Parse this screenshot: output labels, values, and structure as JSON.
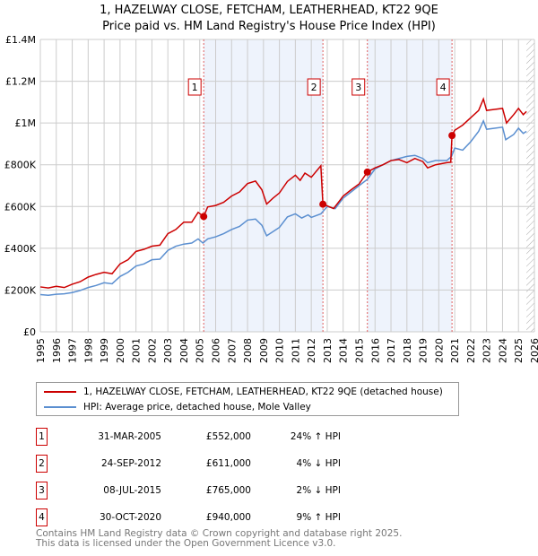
{
  "title": "1, HAZELWAY CLOSE, FETCHAM, LEATHERHEAD, KT22 9QE",
  "subtitle": "Price paid vs. HM Land Registry's House Price Index (HPI)",
  "chart_data": {
    "type": "line",
    "xlim": [
      1995,
      2026
    ],
    "ylim": [
      0,
      1400000
    ],
    "y_ticks": [
      {
        "v": 0,
        "label": "£0"
      },
      {
        "v": 200000,
        "label": "£200K"
      },
      {
        "v": 400000,
        "label": "£400K"
      },
      {
        "v": 600000,
        "label": "£600K"
      },
      {
        "v": 800000,
        "label": "£800K"
      },
      {
        "v": 1000000,
        "label": "£1M"
      },
      {
        "v": 1200000,
        "label": "£1.2M"
      },
      {
        "v": 1400000,
        "label": "£1.4M"
      }
    ],
    "x_ticks": [
      "1995",
      "1996",
      "1997",
      "1998",
      "1999",
      "2000",
      "2001",
      "2002",
      "2003",
      "2004",
      "2005",
      "2006",
      "2007",
      "2008",
      "2009",
      "2010",
      "2011",
      "2012",
      "2013",
      "2014",
      "2015",
      "2016",
      "2017",
      "2018",
      "2019",
      "2020",
      "2021",
      "2022",
      "2023",
      "2024",
      "2025",
      "2026"
    ],
    "grid": true,
    "forecast_hatch_from": 2025.5,
    "series": [
      {
        "name": "1, HAZELWAY CLOSE, FETCHAM, LEATHERHEAD, KT22 9QE (detached house)",
        "color": "#cc0000",
        "points": [
          [
            1995,
            215000
          ],
          [
            1995.5,
            210000
          ],
          [
            1996,
            218000
          ],
          [
            1996.5,
            212000
          ],
          [
            1997,
            228000
          ],
          [
            1997.5,
            240000
          ],
          [
            1998,
            262000
          ],
          [
            1998.5,
            275000
          ],
          [
            1999,
            285000
          ],
          [
            1999.5,
            278000
          ],
          [
            2000,
            325000
          ],
          [
            2000.5,
            345000
          ],
          [
            2001,
            385000
          ],
          [
            2001.5,
            395000
          ],
          [
            2002,
            410000
          ],
          [
            2002.5,
            415000
          ],
          [
            2003,
            470000
          ],
          [
            2003.5,
            490000
          ],
          [
            2004,
            525000
          ],
          [
            2004.5,
            525000
          ],
          [
            2004.9,
            572000
          ],
          [
            2005.25,
            552000
          ],
          [
            2005.5,
            598000
          ],
          [
            2006,
            605000
          ],
          [
            2006.5,
            620000
          ],
          [
            2007,
            650000
          ],
          [
            2007.5,
            670000
          ],
          [
            2008,
            710000
          ],
          [
            2008.5,
            722000
          ],
          [
            2008.9,
            680000
          ],
          [
            2009.2,
            612000
          ],
          [
            2009.6,
            640000
          ],
          [
            2010,
            665000
          ],
          [
            2010.5,
            720000
          ],
          [
            2011,
            750000
          ],
          [
            2011.3,
            725000
          ],
          [
            2011.6,
            760000
          ],
          [
            2012,
            740000
          ],
          [
            2012.6,
            795000
          ],
          [
            2012.73,
            611000
          ],
          [
            2013,
            603000
          ],
          [
            2013.4,
            590000
          ],
          [
            2013.8,
            630000
          ],
          [
            2014,
            650000
          ],
          [
            2014.5,
            680000
          ],
          [
            2015,
            708000
          ],
          [
            2015.52,
            765000
          ],
          [
            2016,
            785000
          ],
          [
            2016.5,
            800000
          ],
          [
            2017,
            820000
          ],
          [
            2017.5,
            825000
          ],
          [
            2018,
            810000
          ],
          [
            2018.5,
            830000
          ],
          [
            2019,
            815000
          ],
          [
            2019.3,
            785000
          ],
          [
            2019.8,
            800000
          ],
          [
            2020.5,
            810000
          ],
          [
            2020.75,
            812000
          ],
          [
            2020.83,
            940000
          ],
          [
            2021,
            965000
          ],
          [
            2021.5,
            990000
          ],
          [
            2022,
            1025000
          ],
          [
            2022.5,
            1060000
          ],
          [
            2022.8,
            1115000
          ],
          [
            2023,
            1060000
          ],
          [
            2023.5,
            1065000
          ],
          [
            2024,
            1070000
          ],
          [
            2024.25,
            1000000
          ],
          [
            2024.7,
            1040000
          ],
          [
            2025,
            1070000
          ],
          [
            2025.3,
            1040000
          ],
          [
            2025.5,
            1055000
          ]
        ]
      },
      {
        "name": "HPI: Average price, detached house, Mole Valley",
        "color": "#5b8fd0",
        "points": [
          [
            1995,
            178000
          ],
          [
            1995.5,
            175000
          ],
          [
            1996,
            180000
          ],
          [
            1996.5,
            182000
          ],
          [
            1997,
            188000
          ],
          [
            1997.5,
            198000
          ],
          [
            1998,
            212000
          ],
          [
            1998.5,
            222000
          ],
          [
            1999,
            235000
          ],
          [
            1999.5,
            230000
          ],
          [
            2000,
            265000
          ],
          [
            2000.5,
            285000
          ],
          [
            2001,
            315000
          ],
          [
            2001.5,
            325000
          ],
          [
            2002,
            345000
          ],
          [
            2002.5,
            348000
          ],
          [
            2003,
            390000
          ],
          [
            2003.5,
            410000
          ],
          [
            2004,
            420000
          ],
          [
            2004.5,
            425000
          ],
          [
            2004.9,
            445000
          ],
          [
            2005.2,
            425000
          ],
          [
            2005.5,
            445000
          ],
          [
            2006,
            455000
          ],
          [
            2006.5,
            470000
          ],
          [
            2007,
            490000
          ],
          [
            2007.5,
            505000
          ],
          [
            2008,
            535000
          ],
          [
            2008.5,
            540000
          ],
          [
            2008.9,
            510000
          ],
          [
            2009.2,
            460000
          ],
          [
            2009.6,
            480000
          ],
          [
            2010,
            500000
          ],
          [
            2010.5,
            550000
          ],
          [
            2011,
            565000
          ],
          [
            2011.4,
            545000
          ],
          [
            2011.8,
            560000
          ],
          [
            2012,
            548000
          ],
          [
            2012.6,
            565000
          ],
          [
            2013,
            600000
          ],
          [
            2013.5,
            590000
          ],
          [
            2014,
            640000
          ],
          [
            2014.5,
            670000
          ],
          [
            2015,
            700000
          ],
          [
            2015.52,
            730000
          ],
          [
            2016,
            780000
          ],
          [
            2016.5,
            800000
          ],
          [
            2017,
            820000
          ],
          [
            2017.5,
            830000
          ],
          [
            2018,
            840000
          ],
          [
            2018.5,
            845000
          ],
          [
            2019,
            830000
          ],
          [
            2019.3,
            810000
          ],
          [
            2019.8,
            820000
          ],
          [
            2020.5,
            820000
          ],
          [
            2020.8,
            840000
          ],
          [
            2021,
            880000
          ],
          [
            2021.5,
            870000
          ],
          [
            2022,
            910000
          ],
          [
            2022.5,
            960000
          ],
          [
            2022.8,
            1010000
          ],
          [
            2023,
            970000
          ],
          [
            2023.5,
            975000
          ],
          [
            2024,
            980000
          ],
          [
            2024.2,
            920000
          ],
          [
            2024.7,
            945000
          ],
          [
            2025,
            975000
          ],
          [
            2025.3,
            950000
          ],
          [
            2025.5,
            960000
          ]
        ]
      }
    ],
    "sales": [
      {
        "n": "1",
        "x": 2005.25,
        "y": 552000
      },
      {
        "n": "2",
        "x": 2012.73,
        "y": 611000
      },
      {
        "n": "3",
        "x": 2015.52,
        "y": 765000
      },
      {
        "n": "4",
        "x": 2020.83,
        "y": 940000
      }
    ],
    "shaded_ranges": [
      [
        2005.25,
        2012.73
      ],
      [
        2015.52,
        2020.83
      ]
    ]
  },
  "legend": {
    "property": "1, HAZELWAY CLOSE, FETCHAM, LEATHERHEAD, KT22 9QE (detached house)",
    "hpi": "HPI: Average price, detached house, Mole Valley"
  },
  "sales_table": [
    {
      "n": "1",
      "date": "31-MAR-2005",
      "price": "£552,000",
      "hpi": "24% ↑ HPI"
    },
    {
      "n": "2",
      "date": "24-SEP-2012",
      "price": "£611,000",
      "hpi": "4% ↓ HPI"
    },
    {
      "n": "3",
      "date": "08-JUL-2015",
      "price": "£765,000",
      "hpi": "2% ↓ HPI"
    },
    {
      "n": "4",
      "date": "30-OCT-2020",
      "price": "£940,000",
      "hpi": "9% ↑ HPI"
    }
  ],
  "footer": {
    "line1": "Contains HM Land Registry data © Crown copyright and database right 2025.",
    "line2": "This data is licensed under the Open Government Licence v3.0."
  }
}
